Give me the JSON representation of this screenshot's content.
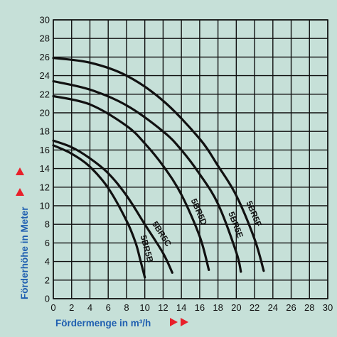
{
  "colors": {
    "background": "#c6e0d8",
    "line": "#111111",
    "axis_title": "#1f5fb0",
    "arrow": "#e8202a"
  },
  "icons": {
    "x_arrows": "double-right-triangle-icon",
    "y_arrows": "double-up-triangle-icon"
  },
  "chart_data": {
    "type": "line",
    "title": "",
    "xlabel": "Fördermenge in m³/h",
    "ylabel": "Förderhöhe in Meter",
    "xlim": [
      0,
      30
    ],
    "ylim": [
      0,
      30
    ],
    "x_ticks": [
      "0",
      "2",
      "4",
      "6",
      "8",
      "10",
      "12",
      "14",
      "16",
      "18",
      "20",
      "22",
      "24",
      "26",
      "28",
      "30"
    ],
    "y_ticks": [
      "0",
      "2",
      "4",
      "6",
      "8",
      "10",
      "12",
      "14",
      "16",
      "18",
      "20",
      "22",
      "24",
      "26",
      "28",
      "30"
    ],
    "grid": true,
    "legend": "none",
    "series": [
      {
        "name": "5BR5B",
        "x": [
          0,
          2,
          4,
          6,
          8,
          9,
          9.5,
          10
        ],
        "y": [
          16.5,
          15.6,
          14.2,
          11.9,
          8.4,
          6,
          4.2,
          2.3
        ]
      },
      {
        "name": "5BR5C",
        "x": [
          0,
          2,
          4,
          6,
          8,
          10,
          12,
          13
        ],
        "y": [
          17,
          16.3,
          15.1,
          13.5,
          11.1,
          8,
          4.9,
          2.8
        ]
      },
      {
        "name": "5BR5D",
        "x": [
          0,
          4,
          8,
          10,
          12,
          14,
          16,
          17
        ],
        "y": [
          21.8,
          20.9,
          18.6,
          16.7,
          14.3,
          11.2,
          6.7,
          3.1
        ]
      },
      {
        "name": "5BR5E",
        "x": [
          0,
          4,
          8,
          12,
          14,
          16,
          18,
          20,
          20.5
        ],
        "y": [
          23.4,
          22.5,
          20.8,
          18,
          16,
          13.4,
          10.2,
          5,
          2.9
        ]
      },
      {
        "name": "5BR5F",
        "x": [
          0,
          4,
          8,
          12,
          16,
          18,
          20,
          22,
          23
        ],
        "y": [
          25.9,
          25.4,
          24,
          21.3,
          17.2,
          14.3,
          11.1,
          6.4,
          3
        ]
      }
    ]
  }
}
